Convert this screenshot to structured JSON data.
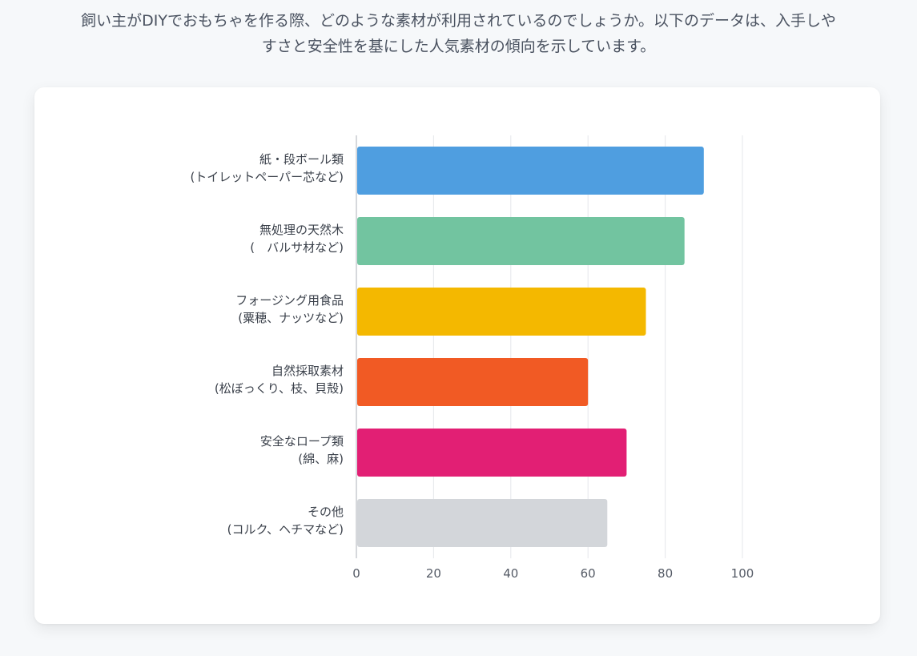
{
  "intro": {
    "line1": "飼い主がDIYでおもちゃを作る際、どのような素材が利用されているのでしょうか。以下のデータは、入手しや",
    "line2": "すさと安全性を基にした人気素材の傾向を示しています。"
  },
  "chart_data": {
    "type": "bar",
    "orientation": "horizontal",
    "categories": [
      [
        "紙・段ボール類",
        "(トイレットペーパー芯など)"
      ],
      [
        "無処理の天然木",
        "(　バルサ材など)"
      ],
      [
        "フォージング用食品",
        "(粟穂、ナッツなど)"
      ],
      [
        "自然採取素材",
        "(松ぼっくり、枝、貝殻)"
      ],
      [
        "安全なロープ類",
        "(綿、麻)"
      ],
      [
        "その他",
        "(コルク、ヘチマなど)"
      ]
    ],
    "values": [
      90,
      85,
      75,
      60,
      70,
      65
    ],
    "colors": [
      "#4f9ee0",
      "#72c4a0",
      "#f4b800",
      "#f15a24",
      "#e21f74",
      "#d3d6da"
    ],
    "xlim": [
      0,
      100
    ],
    "xticks": [
      0,
      20,
      40,
      60,
      80,
      100
    ],
    "grid": true,
    "legend": "none"
  }
}
